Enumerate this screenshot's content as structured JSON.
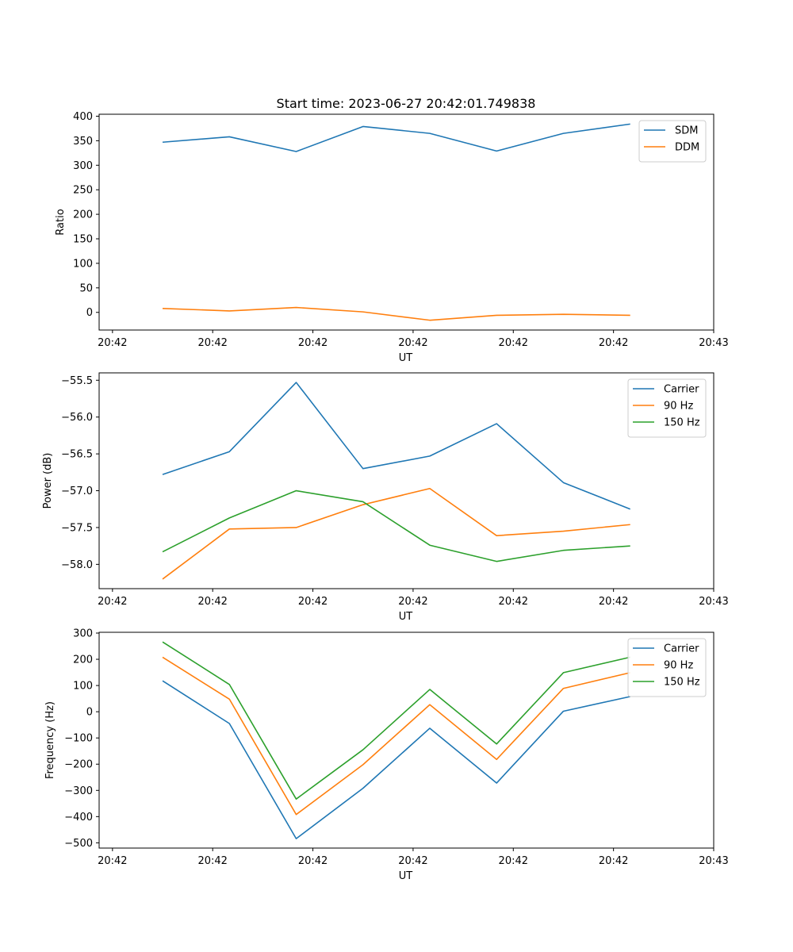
{
  "figure": {
    "title": "Start time: 2023-06-27 20:42:01.749838"
  },
  "chart_data": [
    {
      "type": "line",
      "ylabel": "Ratio",
      "xlabel": "UT",
      "xlim": [
        -0.2,
        9.0
      ],
      "ylim": [
        -36,
        404
      ],
      "x": [
        0.75,
        1.75,
        2.75,
        3.75,
        4.75,
        5.75,
        6.75,
        7.75
      ],
      "xticks": [
        0,
        1.5,
        3,
        4.5,
        6,
        7.5,
        9
      ],
      "xtick_labels": [
        "20:42",
        "20:42",
        "20:42",
        "20:42",
        "20:42",
        "20:42",
        "20:43"
      ],
      "yticks": [
        0,
        50,
        100,
        150,
        200,
        250,
        300,
        350,
        400
      ],
      "ytick_labels": [
        "0",
        "50",
        "100",
        "150",
        "200",
        "250",
        "300",
        "350",
        "400"
      ],
      "legend": "top-right",
      "series": [
        {
          "name": "SDM",
          "color": "#1f77b4",
          "values": [
            347,
            358,
            328,
            379,
            365,
            329,
            365,
            384
          ]
        },
        {
          "name": "DDM",
          "color": "#ff7f0e",
          "values": [
            8,
            3,
            10,
            1,
            -16,
            -6,
            -4,
            -6
          ]
        }
      ]
    },
    {
      "type": "line",
      "ylabel": "Power (dB)",
      "xlabel": "UT",
      "xlim": [
        -0.2,
        9.0
      ],
      "ylim": [
        -58.33,
        -55.4
      ],
      "x": [
        0.75,
        1.75,
        2.75,
        3.75,
        4.75,
        5.75,
        6.75,
        7.75
      ],
      "xticks": [
        0,
        1.5,
        3,
        4.5,
        6,
        7.5,
        9
      ],
      "xtick_labels": [
        "20:42",
        "20:42",
        "20:42",
        "20:42",
        "20:42",
        "20:42",
        "20:43"
      ],
      "yticks": [
        -58.0,
        -57.5,
        -57.0,
        -56.5,
        -56.0,
        -55.5
      ],
      "ytick_labels": [
        "−58.0",
        "−57.5",
        "−57.0",
        "−56.5",
        "−56.0",
        "−55.5"
      ],
      "legend": "top-right",
      "series": [
        {
          "name": "Carrier",
          "color": "#1f77b4",
          "values": [
            -56.78,
            -56.47,
            -55.53,
            -56.7,
            -56.53,
            -56.09,
            -56.89,
            -57.25
          ]
        },
        {
          "name": "90 Hz",
          "color": "#ff7f0e",
          "values": [
            -58.2,
            -57.52,
            -57.5,
            -57.19,
            -56.97,
            -57.61,
            -57.55,
            -57.46
          ]
        },
        {
          "name": "150 Hz",
          "color": "#2ca02c",
          "values": [
            -57.83,
            -57.37,
            -57.0,
            -57.15,
            -57.74,
            -57.96,
            -57.81,
            -57.75
          ]
        }
      ]
    },
    {
      "type": "line",
      "ylabel": "Frequency (Hz)",
      "xlabel": "UT",
      "xlim": [
        -0.2,
        9.0
      ],
      "ylim": [
        -520,
        303
      ],
      "x": [
        0.75,
        1.75,
        2.75,
        3.75,
        4.75,
        5.75,
        6.75,
        7.75
      ],
      "xticks": [
        0,
        1.5,
        3,
        4.5,
        6,
        7.5,
        9
      ],
      "xtick_labels": [
        "20:42",
        "20:42",
        "20:42",
        "20:42",
        "20:42",
        "20:42",
        "20:43"
      ],
      "yticks": [
        -500,
        -400,
        -300,
        -200,
        -100,
        0,
        100,
        200,
        300
      ],
      "ytick_labels": [
        "−500",
        "−400",
        "−300",
        "−200",
        "−100",
        "0",
        "100",
        "200",
        "300"
      ],
      "legend": "top-right",
      "series": [
        {
          "name": "Carrier",
          "color": "#1f77b4",
          "values": [
            118,
            -45,
            -484,
            -292,
            -63,
            -272,
            2,
            58
          ]
        },
        {
          "name": "90 Hz",
          "color": "#ff7f0e",
          "values": [
            208,
            48,
            -392,
            -202,
            27,
            -182,
            89,
            149
          ]
        },
        {
          "name": "150 Hz",
          "color": "#2ca02c",
          "values": [
            266,
            104,
            -333,
            -145,
            85,
            -123,
            149,
            208
          ]
        }
      ]
    }
  ]
}
